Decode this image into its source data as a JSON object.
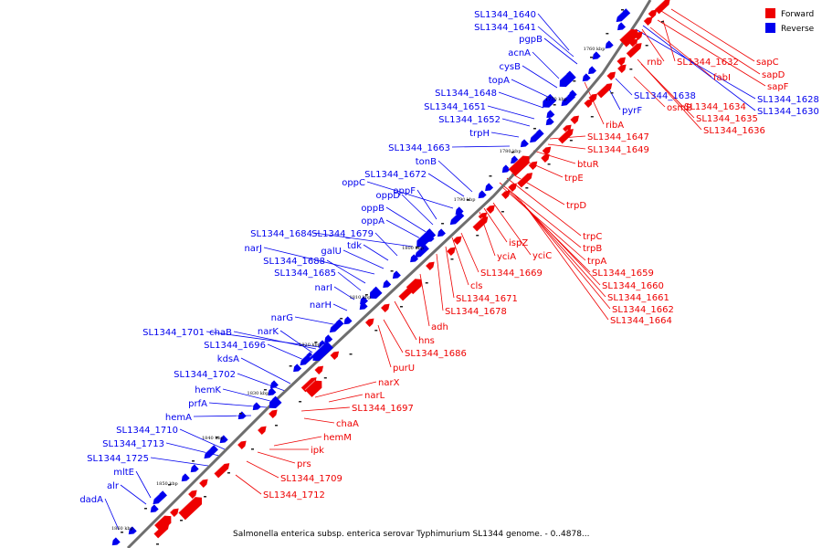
{
  "caption": "Salmonella enterica subsp. enterica serovar Typhimurium SL1344 genome. - 0..4878...",
  "legend": [
    {
      "label": "Forward",
      "color": "#ee0000"
    },
    {
      "label": "Reverse",
      "color": "#0000ee"
    }
  ],
  "colors": {
    "forward": "#ee0000",
    "reverse": "#0000ee",
    "backbone": "#6e6e6e"
  },
  "kbp_ticks": [
    "1760 kbp",
    "1770 kbp",
    "1780 kbp",
    "1790 kbp",
    "1800 kbp",
    "1810 kbp",
    "1820 kbp",
    "1830 kbp",
    "1840 kbp",
    "1850 kbp",
    "1860 kbp"
  ],
  "reverse_labels": [
    "SL1344_1640",
    "SL1344_1641",
    "pgpB",
    "acnA",
    "cysB",
    "topA",
    "SL1344_1648",
    "SL1344_1651",
    "SL1344_1652",
    "trpH",
    "SL1344_1663",
    "tonB",
    "SL1344_1672",
    "oppC",
    "oppF",
    "oppD",
    "oppB",
    "oppA",
    "SL1344_1684",
    "SL1344_1679",
    "narJ",
    "galU",
    "tdk",
    "SL1344_1688",
    "SL1344_1685",
    "narI",
    "narH",
    "narG",
    "SL1344_1701",
    "chaB",
    "narK",
    "SL1344_1696",
    "kdsA",
    "SL1344_1702",
    "hemK",
    "prfA",
    "hemA",
    "SL1344_1710",
    "SL1344_1713",
    "SL1344_1725",
    "mltE",
    "alr",
    "dadA",
    "pyrF",
    "SL1344_1638",
    "SL1344_1628",
    "SL1344_1630"
  ],
  "forward_labels": [
    "rnb",
    "SL1344_1632",
    "sapC",
    "sapD",
    "fabI",
    "sapF",
    "osmB",
    "SL1344_1634",
    "SL1344_1635",
    "SL1344_1636",
    "ribA",
    "SL1344_1647",
    "SL1344_1649",
    "btuR",
    "trpE",
    "trpD",
    "trpC",
    "trpB",
    "ispZ",
    "yciA",
    "yciC",
    "trpA",
    "SL1344_1669",
    "SL1344_1659",
    "cls",
    "SL1344_1660",
    "SL1344_1661",
    "SL1344_1671",
    "SL1344_1662",
    "SL1344_1678",
    "SL1344_1664",
    "adh",
    "hns",
    "SL1344_1686",
    "purU",
    "narX",
    "narL",
    "SL1344_1697",
    "chaA",
    "hemM",
    "ipk",
    "prs",
    "SL1344_1709",
    "SL1344_1712"
  ]
}
